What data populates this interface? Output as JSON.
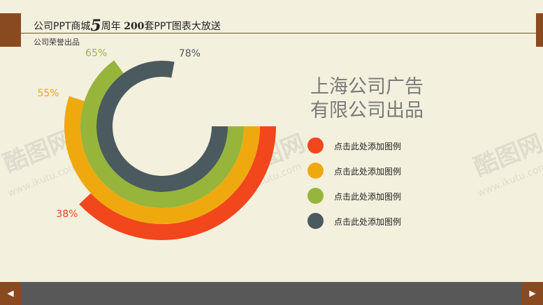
{
  "header": {
    "title_part1": "公司PPT商城",
    "title_big": "5",
    "title_part2": "周年  ",
    "title_num": "200",
    "title_part3": "套PPT图表大放送",
    "subtitle": "公司荣誉出品"
  },
  "main_title_line1": "上海公司广告",
  "main_title_line2": "有限公司出品",
  "watermark": {
    "brand": "酷图网",
    "url": "www.ikutu.com"
  },
  "colors": {
    "red": "#f2461c",
    "orange": "#efa90f",
    "green": "#97b53a",
    "slate": "#4a5a5e",
    "background": "#f4f0de",
    "accent": "#8a4a1f",
    "footer": "#585858"
  },
  "chart_data": {
    "type": "radial-bar",
    "series": [
      {
        "label": "点击此处添加图例",
        "value_label": "38%",
        "value": 38,
        "color": "#f2461c"
      },
      {
        "label": "点击此处添加图例",
        "value_label": "55%",
        "value": 55,
        "color": "#efa90f"
      },
      {
        "label": "点击此处添加图例",
        "value_label": "65%",
        "value": 65,
        "color": "#97b53a"
      },
      {
        "label": "点击此处添加图例",
        "value_label": "78%",
        "value": 78,
        "color": "#4a5a5e"
      }
    ]
  },
  "nav": {
    "prev_icon": "◀",
    "next_icon": "▶"
  }
}
